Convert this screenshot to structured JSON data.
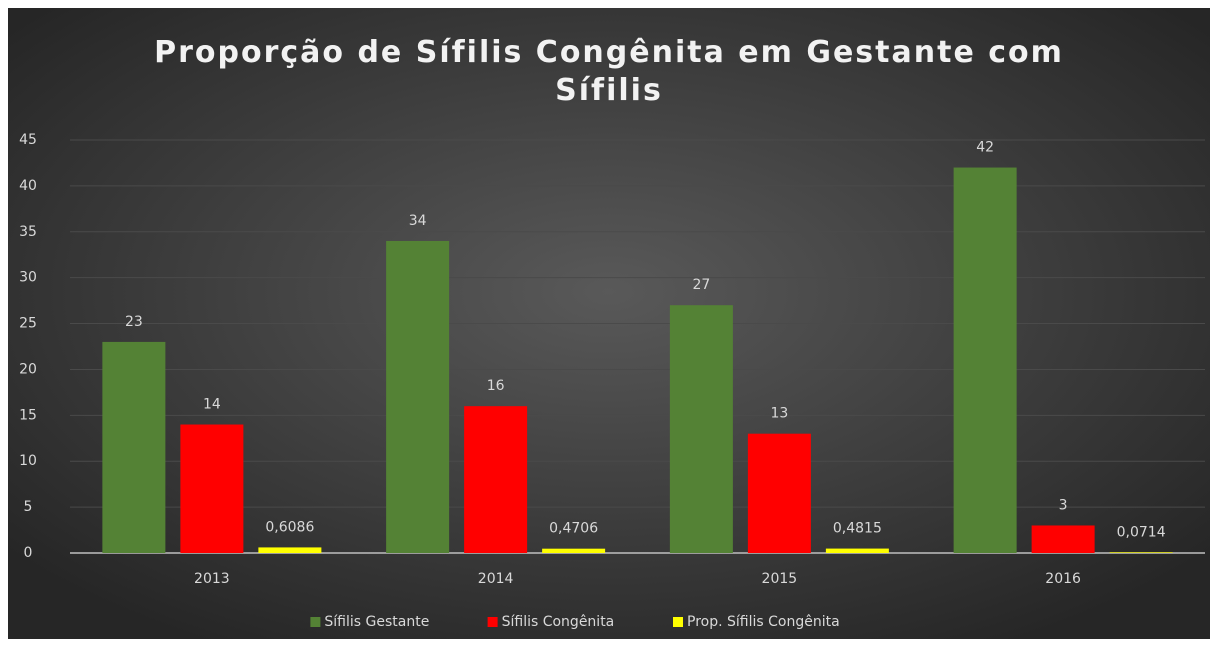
{
  "chart_data": {
    "type": "bar",
    "title": "Proporção de Sífilis Congênita em Gestante com Sífilis",
    "categories": [
      "2013",
      "2014",
      "2015",
      "2016"
    ],
    "series": [
      {
        "name": "Sífilis Gestante",
        "color": "#548235",
        "values": [
          23,
          34,
          27,
          42
        ]
      },
      {
        "name": "Sífilis Congênita",
        "color": "#ff0000",
        "values": [
          14,
          16,
          13,
          3
        ]
      },
      {
        "name": "Prop. Sífilis Congênita",
        "color": "#ffff00",
        "values": [
          0.6086,
          0.4706,
          0.4815,
          0.0714
        ],
        "value_labels": [
          "0,6086",
          "0,4706",
          "0,4815",
          "0,0714"
        ]
      }
    ],
    "ylim": [
      0,
      45
    ],
    "yticks": [
      0,
      5,
      10,
      15,
      20,
      25,
      30,
      35,
      40,
      45
    ],
    "grid": true,
    "legend": "bottom"
  }
}
